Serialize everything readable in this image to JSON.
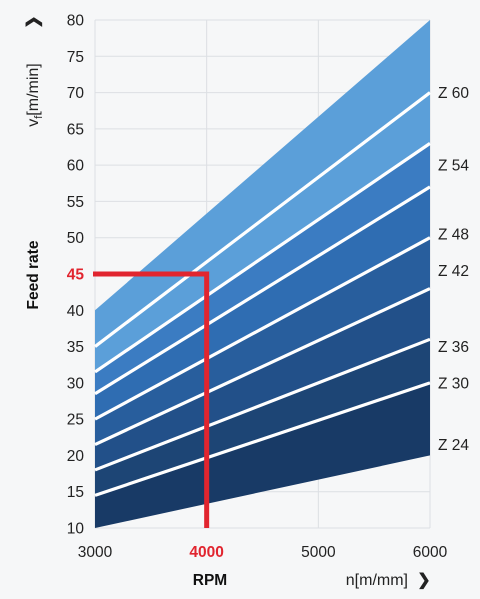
{
  "chart_data": {
    "type": "area",
    "xlim": [
      3000,
      6000
    ],
    "ylim": [
      10,
      80
    ],
    "x_ticks": [
      "3000",
      "4000",
      "5000",
      "6000"
    ],
    "y_ticks": [
      "10",
      "15",
      "20",
      "25",
      "30",
      "35",
      "40",
      "45",
      "50",
      "55",
      "60",
      "65",
      "70",
      "75",
      "80"
    ],
    "grid": true,
    "series": [
      {
        "name": "Z 24",
        "x": [
          3000,
          6000
        ],
        "y": [
          10,
          20
        ],
        "y_top": [
          14.5,
          30
        ],
        "color": "#183a66"
      },
      {
        "name": "Z 30",
        "x": [
          3000,
          6000
        ],
        "y": [
          14.5,
          30
        ],
        "y_top": [
          18,
          36
        ],
        "color": "#1d4575"
      },
      {
        "name": "Z 36",
        "x": [
          3000,
          6000
        ],
        "y": [
          18,
          36
        ],
        "y_top": [
          21.5,
          43
        ],
        "color": "#225089"
      },
      {
        "name": "Z 42",
        "x": [
          3000,
          6000
        ],
        "y": [
          21.5,
          43
        ],
        "y_top": [
          25,
          50
        ],
        "color": "#285e9d"
      },
      {
        "name": "Z 48",
        "x": [
          3000,
          6000
        ],
        "y": [
          25,
          50
        ],
        "y_top": [
          28.5,
          57
        ],
        "color": "#2f6db2"
      },
      {
        "name": "Z 54",
        "x": [
          3000,
          6000
        ],
        "y": [
          28.5,
          57
        ],
        "y_top": [
          31.5,
          63
        ],
        "color": "#3b7cc2"
      },
      {
        "name": "Z 60",
        "x": [
          3000,
          6000
        ],
        "y": [
          31.5,
          63
        ],
        "y_top": [
          40,
          80
        ],
        "color": "#5b9fd9"
      }
    ],
    "boundaries": [
      {
        "x": [
          3000,
          6000
        ],
        "y": [
          14.5,
          30
        ]
      },
      {
        "x": [
          3000,
          6000
        ],
        "y": [
          18,
          36
        ]
      },
      {
        "x": [
          3000,
          6000
        ],
        "y": [
          21.5,
          43
        ]
      },
      {
        "x": [
          3000,
          6000
        ],
        "y": [
          25,
          50
        ]
      },
      {
        "x": [
          3000,
          6000
        ],
        "y": [
          28.5,
          57
        ]
      },
      {
        "x": [
          3000,
          6000
        ],
        "y": [
          31.5,
          63
        ]
      },
      {
        "x": [
          3000,
          6000
        ],
        "y": [
          35,
          70
        ]
      }
    ],
    "band_labels": [
      {
        "text": "Z 60",
        "y": 70
      },
      {
        "text": "Z 54",
        "y": 60
      },
      {
        "text": "Z 48",
        "y": 50.5
      },
      {
        "text": "Z 42",
        "y": 45.5
      },
      {
        "text": "Z 36",
        "y": 35
      },
      {
        "text": "Z 30",
        "y": 30
      },
      {
        "text": "Z 24",
        "y": 21.5
      }
    ],
    "highlight": {
      "x": 4000,
      "y": 45,
      "x_label": "4000",
      "y_label": "45",
      "color": "#e1252f"
    },
    "xlabel": "RPM",
    "x_unit": "n[m/mm]",
    "ylabel": "Feed rate",
    "y_unit_main": "v",
    "y_unit_sub": "f",
    "y_unit_rest": "[m/min]",
    "x_arrow": "❯",
    "y_arrow": "❯"
  }
}
